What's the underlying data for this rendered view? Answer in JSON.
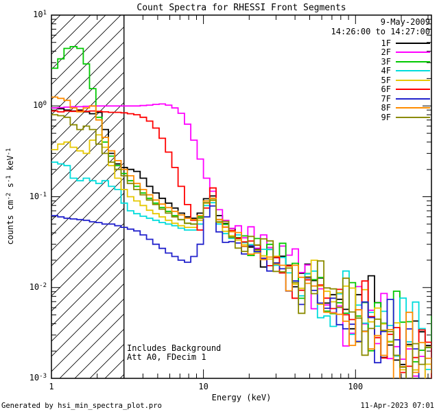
{
  "chart_data": {
    "type": "line",
    "mode": "log-log step spectra",
    "title": "Count Spectra for RHESSI Front Segments",
    "xlabel": "Energy (keV)",
    "ylabel": "counts cm^-2 s^-1 keV^-1",
    "ylabel_segments": [
      [
        "counts cm",
        false
      ],
      [
        "-2",
        true
      ],
      [
        " s",
        false
      ],
      [
        "-1",
        true
      ],
      [
        " keV",
        false
      ],
      [
        "-1",
        true
      ]
    ],
    "header": {
      "date": "9-May-2009",
      "interval": "14:26:00 to 14:27:00"
    },
    "annotations": [
      "Includes Background",
      "Att A0, FDecim 1"
    ],
    "footer_left": "Generated by hsi_min_spectra_plot.pro",
    "footer_right": "11-Apr-2023 07:01",
    "x_range": [
      1,
      316
    ],
    "y_range": [
      0.001,
      10
    ],
    "grid": false,
    "legend_position": "top-right",
    "x_ticks": [
      {
        "value": 1,
        "label": "1"
      },
      {
        "value": 10,
        "label": "10"
      },
      {
        "value": 100,
        "label": "100"
      }
    ],
    "y_ticks": [
      {
        "value": 0.001,
        "label_base": "10",
        "label_exp": "-3"
      },
      {
        "value": 0.01,
        "label_base": "10",
        "label_exp": "-2"
      },
      {
        "value": 0.1,
        "label_base": "10",
        "label_exp": "-1"
      },
      {
        "value": 1,
        "label_base": "10",
        "label_exp": "0"
      },
      {
        "value": 10,
        "label_base": "10",
        "label_exp": "1"
      }
    ],
    "hatch_region": {
      "x_min": 1,
      "x_max": 3.0,
      "style": "diagonal-hatch"
    },
    "x_shape": [
      1.0,
      1.1,
      1.21,
      1.33,
      1.47,
      1.62,
      1.78,
      1.96,
      2.15,
      2.37,
      2.61,
      2.87,
      3.16,
      3.48,
      3.83,
      4.22,
      4.64,
      5.11,
      5.62,
      6.19,
      6.81,
      7.5,
      8.25,
      9.09,
      10.0,
      11.0,
      12.1
    ],
    "series": [
      {
        "name": "1F",
        "color": "#000000",
        "y_shape": [
          0.95,
          0.93,
          0.9,
          0.88,
          0.9,
          0.86,
          0.82,
          0.85,
          0.55,
          0.3,
          0.23,
          0.21,
          0.2,
          0.19,
          0.16,
          0.13,
          0.11,
          0.096,
          0.085,
          0.075,
          0.066,
          0.06,
          0.058,
          0.066,
          0.095,
          0.102,
          0.062
        ],
        "tail": {
          "start_x": 12.115,
          "norm": 0.055,
          "index": -1.12,
          "noise_sigma": [
            0.1,
            0.6
          ],
          "seed": 101
        }
      },
      {
        "name": "2F",
        "color": "#FF00FF",
        "y_shape": [
          0.95,
          0.96,
          0.97,
          0.98,
          0.98,
          0.99,
          1.0,
          1.0,
          1.0,
          1.0,
          1.0,
          1.0,
          1.0,
          1.0,
          1.01,
          1.02,
          1.04,
          1.05,
          1.02,
          0.95,
          0.83,
          0.63,
          0.42,
          0.26,
          0.16,
          0.115,
          0.072
        ],
        "tail": {
          "start_x": 12.115,
          "norm": 0.068,
          "index": -1.32,
          "noise_sigma": [
            0.1,
            0.6
          ],
          "seed": 202
        }
      },
      {
        "name": "3F",
        "color": "#00C800",
        "y_shape": [
          2.6,
          3.3,
          4.3,
          4.5,
          4.3,
          2.9,
          1.55,
          0.75,
          0.4,
          0.28,
          0.22,
          0.18,
          0.15,
          0.13,
          0.11,
          0.096,
          0.085,
          0.076,
          0.069,
          0.062,
          0.056,
          0.051,
          0.05,
          0.06,
          0.09,
          0.096,
          0.056
        ],
        "tail": {
          "start_x": 12.115,
          "norm": 0.05,
          "index": -1.1,
          "noise_sigma": [
            0.1,
            0.6
          ],
          "seed": 303
        }
      },
      {
        "name": "4F",
        "color": "#00DCDC",
        "y_shape": [
          0.24,
          0.23,
          0.22,
          0.16,
          0.15,
          0.16,
          0.15,
          0.14,
          0.15,
          0.13,
          0.12,
          0.085,
          0.07,
          0.065,
          0.061,
          0.058,
          0.055,
          0.052,
          0.05,
          0.048,
          0.045,
          0.043,
          0.043,
          0.05,
          0.08,
          0.086,
          0.05
        ],
        "tail": {
          "start_x": 12.115,
          "norm": 0.046,
          "index": -1.08,
          "noise_sigma": [
            0.1,
            0.6
          ],
          "seed": 404
        }
      },
      {
        "name": "5F",
        "color": "#E6C800",
        "y_shape": [
          0.33,
          0.38,
          0.4,
          0.35,
          0.32,
          0.3,
          0.42,
          0.48,
          0.35,
          0.22,
          0.16,
          0.12,
          0.1,
          0.09,
          0.08,
          0.071,
          0.065,
          0.06,
          0.055,
          0.051,
          0.048,
          0.046,
          0.046,
          0.055,
          0.085,
          0.091,
          0.052
        ],
        "tail": {
          "start_x": 12.115,
          "norm": 0.048,
          "index": -1.1,
          "noise_sigma": [
            0.1,
            0.6
          ],
          "seed": 505
        }
      },
      {
        "name": "6F",
        "color": "#FF0000",
        "y_shape": [
          0.88,
          0.86,
          0.88,
          0.87,
          0.88,
          0.87,
          0.88,
          0.87,
          0.86,
          0.85,
          0.85,
          0.84,
          0.82,
          0.8,
          0.75,
          0.68,
          0.57,
          0.44,
          0.31,
          0.21,
          0.13,
          0.082,
          0.055,
          0.043,
          0.075,
          0.125,
          0.056
        ],
        "tail": {
          "start_x": 12.115,
          "norm": 0.05,
          "index": -1.14,
          "noise_sigma": [
            0.1,
            0.6
          ],
          "seed": 606
        }
      },
      {
        "name": "7F",
        "color": "#2222CC",
        "y_shape": [
          0.062,
          0.06,
          0.058,
          0.057,
          0.056,
          0.055,
          0.053,
          0.052,
          0.05,
          0.05,
          0.048,
          0.046,
          0.044,
          0.042,
          0.038,
          0.034,
          0.03,
          0.027,
          0.024,
          0.022,
          0.02,
          0.019,
          0.022,
          0.03,
          0.06,
          0.079,
          0.041
        ],
        "tail": {
          "start_x": 12.115,
          "norm": 0.038,
          "index": -1.05,
          "noise_sigma": [
            0.1,
            0.6
          ],
          "seed": 707
        }
      },
      {
        "name": "8F",
        "color": "#FF8C00",
        "y_shape": [
          1.25,
          1.21,
          1.15,
          0.95,
          0.86,
          0.95,
          1.0,
          0.7,
          0.45,
          0.32,
          0.25,
          0.2,
          0.17,
          0.14,
          0.12,
          0.105,
          0.092,
          0.083,
          0.076,
          0.069,
          0.063,
          0.058,
          0.056,
          0.062,
          0.09,
          0.096,
          0.056
        ],
        "tail": {
          "start_x": 12.115,
          "norm": 0.05,
          "index": -1.12,
          "noise_sigma": [
            0.1,
            0.6
          ],
          "seed": 808
        }
      },
      {
        "name": "9F",
        "color": "#8B8B00",
        "y_shape": [
          0.8,
          0.78,
          0.75,
          0.62,
          0.55,
          0.6,
          0.55,
          0.38,
          0.3,
          0.24,
          0.2,
          0.17,
          0.14,
          0.12,
          0.105,
          0.092,
          0.082,
          0.073,
          0.066,
          0.06,
          0.056,
          0.051,
          0.05,
          0.058,
          0.086,
          0.092,
          0.053
        ],
        "tail": {
          "start_x": 12.115,
          "norm": 0.048,
          "index": -1.1,
          "noise_sigma": [
            0.1,
            0.6
          ],
          "seed": 909
        }
      }
    ]
  }
}
